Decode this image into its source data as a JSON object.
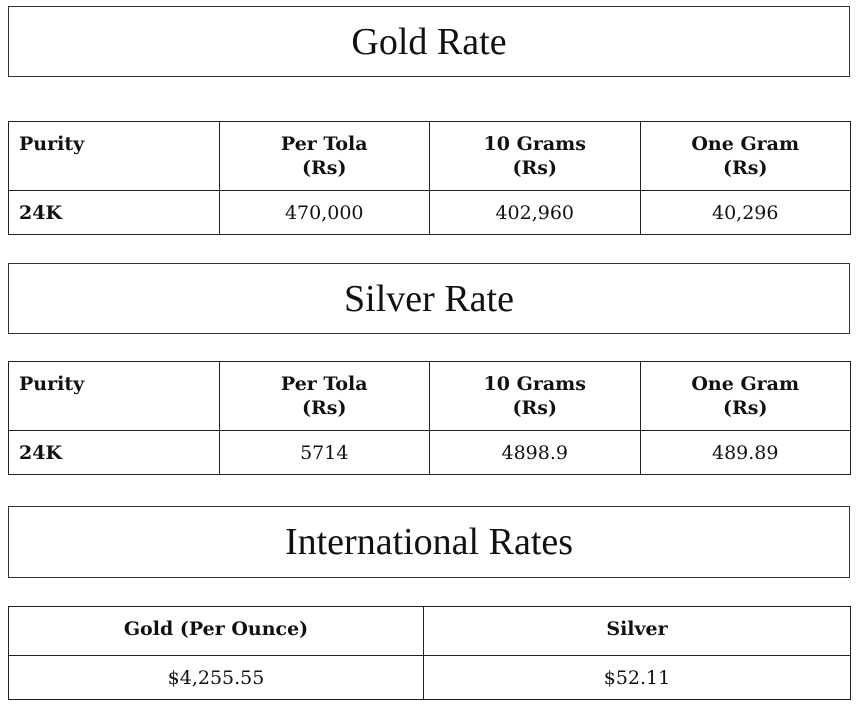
{
  "gold": {
    "title": "Gold Rate",
    "headers": [
      "Purity",
      "Per Tola\n(Rs)",
      "10 Grams\n(Rs)",
      "One Gram\n(Rs)"
    ],
    "headers_main": [
      "Purity",
      "Per Tola",
      "10 Grams",
      "One Gram"
    ],
    "unit": "(Rs)",
    "row": {
      "purity": "24K",
      "per_tola": "470,000",
      "ten_grams": "402,960",
      "one_gram": "40,296"
    }
  },
  "silver": {
    "title": "Silver Rate",
    "headers_main": [
      "Purity",
      "Per Tola",
      "10 Grams",
      "One Gram"
    ],
    "unit": "(Rs)",
    "row": {
      "purity": "24K",
      "per_tola": "5714",
      "ten_grams": "4898.9",
      "one_gram": "489.89"
    }
  },
  "international": {
    "title": "International Rates",
    "headers": [
      "Gold (Per Ounce)",
      "Silver"
    ],
    "values": [
      "$4,255.55",
      "$52.11"
    ]
  }
}
